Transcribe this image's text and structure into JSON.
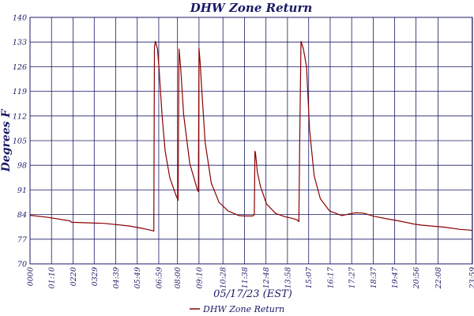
{
  "chart_data": {
    "type": "line",
    "title": "DHW Zone Return",
    "xlabel": "05/17/23 (EST)",
    "ylabel": "Degrees F",
    "ylim": [
      70,
      140
    ],
    "yticks": [
      70,
      77,
      84,
      91,
      98,
      105,
      112,
      119,
      126,
      133,
      140
    ],
    "xlim": [
      0,
      1440
    ],
    "xticks": [
      {
        "label": "0000",
        "minute": 0
      },
      {
        "label": "01:10",
        "minute": 70
      },
      {
        "label": "0220",
        "minute": 140
      },
      {
        "label": "0329",
        "minute": 209
      },
      {
        "label": "04:39",
        "minute": 279
      },
      {
        "label": "05:49",
        "minute": 349
      },
      {
        "label": "06:59",
        "minute": 419
      },
      {
        "label": "08:00",
        "minute": 480
      },
      {
        "label": "09:10",
        "minute": 550
      },
      {
        "label": "10:28",
        "minute": 628
      },
      {
        "label": "11:38",
        "minute": 698
      },
      {
        "label": "12:48",
        "minute": 768
      },
      {
        "label": "13:58",
        "minute": 838
      },
      {
        "label": "15:07",
        "minute": 907
      },
      {
        "label": "16:17",
        "minute": 977
      },
      {
        "label": "17:27",
        "minute": 1047
      },
      {
        "label": "18:37",
        "minute": 1117
      },
      {
        "label": "19:47",
        "minute": 1187
      },
      {
        "label": "20:56",
        "minute": 1256
      },
      {
        "label": "22:08",
        "minute": 1328
      },
      {
        "label": "23:59",
        "minute": 1439
      }
    ],
    "grid": true,
    "legend": "bottom",
    "colors": {
      "series": "#8b0000",
      "axis": "#1a1a66",
      "grid": "#1a1a66"
    },
    "series": [
      {
        "name": "DHW Zone Return",
        "x": [
          0,
          60,
          130,
          135,
          240,
          320,
          370,
          400,
          403,
          405,
          408,
          415,
          420,
          430,
          440,
          455,
          475,
          480,
          482,
          485,
          490,
          500,
          520,
          545,
          548,
          550,
          554,
          560,
          570,
          590,
          615,
          645,
          680,
          700,
          725,
          730,
          732,
          734,
          740,
          750,
          770,
          800,
          830,
          850,
          870,
          872,
          875,
          878,
          882,
          890,
          900,
          910,
          925,
          945,
          975,
          1015,
          1040,
          1060,
          1085,
          1100,
          1120,
          1160,
          1200,
          1250,
          1275,
          1300,
          1350,
          1400,
          1430,
          1439
        ],
        "y": [
          83.8,
          83.2,
          82.2,
          81.8,
          81.5,
          80.8,
          80.0,
          79.4,
          79.3,
          131.5,
          133.2,
          131.0,
          125.5,
          112.0,
          102.0,
          94.5,
          89.5,
          88.5,
          88.0,
          131.0,
          126.0,
          112.5,
          98.5,
          91.0,
          90.5,
          131.2,
          127.0,
          118.0,
          104.5,
          93.0,
          87.5,
          85.0,
          83.7,
          83.6,
          83.6,
          84.0,
          102.0,
          101.5,
          96.0,
          92.0,
          87.0,
          84.3,
          83.4,
          83.0,
          82.5,
          82.2,
          82.0,
          105.0,
          133.2,
          131.0,
          126.0,
          108.0,
          95.0,
          88.5,
          85.0,
          83.7,
          84.2,
          84.5,
          84.4,
          84.0,
          83.5,
          82.8,
          82.2,
          81.3,
          81.0,
          80.8,
          80.4,
          79.8,
          79.6,
          79.5
        ]
      }
    ]
  }
}
